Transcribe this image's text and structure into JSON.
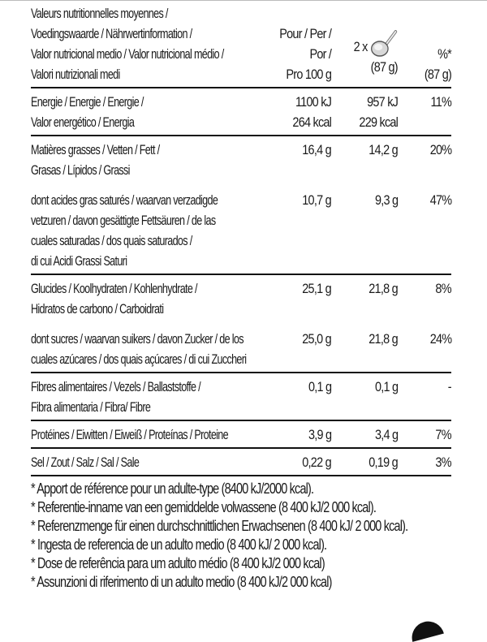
{
  "header": {
    "label_lines": [
      "Valeurs nutritionnelles moyennes /",
      "Voedingswaarde / Nährwertinformation /",
      "Valor nutricional medio / Valor nutricional médio /",
      "Valori nutrizionali medi"
    ],
    "col1_lines": [
      "Pour / Per /",
      "Por /",
      "Pro 100 g"
    ],
    "col2_prefix": "2 x",
    "col2_unit": "(87 g)",
    "col3_lines": [
      "%*",
      "(87 g)"
    ],
    "serving_icon": "scoop-icon"
  },
  "rows": [
    {
      "label": [
        "Energie / Energie / Energie /",
        "Valor energético / Energia"
      ],
      "per100": [
        "1100 kJ",
        "264 kcal"
      ],
      "serving": [
        "957 kJ",
        "229 kcal"
      ],
      "ri": "11%"
    },
    {
      "label": [
        "Matières grasses / Vetten / Fett /",
        "Grasas / Lípidos / Grassi"
      ],
      "per100": [
        "16,4 g"
      ],
      "serving": [
        "14,2 g"
      ],
      "ri": "20%"
    },
    {
      "label": [
        "dont acides gras saturés / waarvan verzadigde",
        "vetzuren / davon gesättigte Fettsäuren / de las",
        "cuales saturadas / dos quais saturados /",
        "di cui Acidi Grassi Saturi"
      ],
      "per100": [
        "10,7 g"
      ],
      "serving": [
        "9,3 g"
      ],
      "ri": "47%"
    },
    {
      "label": [
        "Glucides / Koolhydraten / Kohlenhydrate /",
        "Hidratos de carbono / Carboidrati"
      ],
      "per100": [
        "25,1 g"
      ],
      "serving": [
        "21,8 g"
      ],
      "ri": "8%"
    },
    {
      "label": [
        "dont sucres / waarvan suikers / davon Zucker / de los",
        "cuales azúcares / dos quais açúcares / di cui Zuccheri"
      ],
      "per100": [
        "25,0 g"
      ],
      "serving": [
        "21,8 g"
      ],
      "ri": "24%"
    },
    {
      "label": [
        "Fibres alimentaires / Vezels / Ballaststoffe /",
        "Fibra alimentaria / Fibra/ Fibre"
      ],
      "per100": [
        "0,1 g"
      ],
      "serving": [
        "0,1 g"
      ],
      "ri": "-"
    },
    {
      "label": [
        "Protéines / Eiwitten / Eiweiß / Proteínas / Proteine"
      ],
      "per100": [
        "3,9 g"
      ],
      "serving": [
        "3,4 g"
      ],
      "ri": "7%"
    },
    {
      "label": [
        "Sel / Zout / Salz / Sal / Sale"
      ],
      "per100": [
        "0,22 g"
      ],
      "serving": [
        "0,19 g"
      ],
      "ri": "3%"
    }
  ],
  "footnotes": [
    "* Apport de référence pour un adulte-type (8400 kJ/2000 kcal).",
    "* Referentie-inname van een gemiddelde volwassene (8 400 kJ/2 000 kcal).",
    "* Referenzmenge für einen durchschnittlichen Erwachsenen (8 400 kJ/ 2 000 kcal).",
    "* Ingesta de referencia de un adulto medio (8 400 kJ/ 2 000 kcal).",
    "* Dose de referência para um adulto médio (8 400 kJ/2 000 kcal)",
    "* Assunzioni di riferimento di un adulto medio (8 400 kJ/2 000 kcal)"
  ]
}
